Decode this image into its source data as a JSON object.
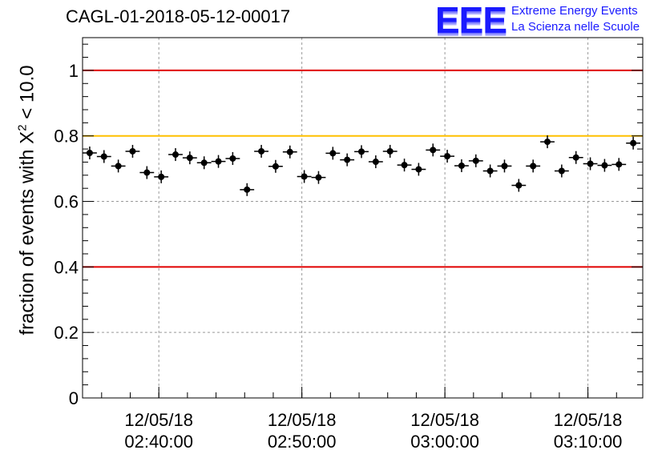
{
  "header": {
    "run_id": "CAGL-01-2018-05-12-00017",
    "logo_mark": "EEE",
    "logo_line1": "Extreme Energy Events",
    "logo_line2": "La Scienza nelle Scuole"
  },
  "colors": {
    "limit_red": "#e00000",
    "limit_yellow": "#ffc000",
    "marker": "#000000",
    "grid": "#999999",
    "logo_blue": "#1a1aff"
  },
  "chart_data": {
    "type": "scatter",
    "ylabel_prefix": "fraction of events with X",
    "ylabel_sup": "2",
    "ylabel_suffix": " < 10.0",
    "ylim": [
      0,
      1.1
    ],
    "yticks": [
      {
        "value": 0,
        "label": "0"
      },
      {
        "value": 0.2,
        "label": "0.2"
      },
      {
        "value": 0.4,
        "label": "0.4"
      },
      {
        "value": 0.6,
        "label": "0.6"
      },
      {
        "value": 0.8,
        "label": "0.8"
      },
      {
        "value": 1.0,
        "label": "1"
      }
    ],
    "xlim": [
      "02:34:40",
      "03:13:50"
    ],
    "xticks": [
      {
        "time": "02:40:00",
        "date": "12/05/18",
        "label": "02:40:00"
      },
      {
        "time": "02:50:00",
        "date": "12/05/18",
        "label": "02:50:00"
      },
      {
        "time": "03:00:00",
        "date": "12/05/18",
        "label": "03:00:00"
      },
      {
        "time": "03:10:00",
        "date": "12/05/18",
        "label": "03:10:00"
      }
    ],
    "grid": true,
    "reference_lines": [
      {
        "y": 1.0,
        "color": "#e00000"
      },
      {
        "y": 0.8,
        "color": "#ffc000"
      },
      {
        "y": 0.4,
        "color": "#e00000"
      }
    ],
    "bin_width_minutes": 1,
    "points": [
      {
        "x": "02:35:10",
        "y": 0.748
      },
      {
        "x": "02:36:10",
        "y": 0.737
      },
      {
        "x": "02:37:10",
        "y": 0.708
      },
      {
        "x": "02:38:10",
        "y": 0.753
      },
      {
        "x": "02:39:10",
        "y": 0.688
      },
      {
        "x": "02:40:10",
        "y": 0.675
      },
      {
        "x": "02:41:10",
        "y": 0.743
      },
      {
        "x": "02:42:10",
        "y": 0.733
      },
      {
        "x": "02:43:10",
        "y": 0.718
      },
      {
        "x": "02:44:10",
        "y": 0.722
      },
      {
        "x": "02:45:10",
        "y": 0.731
      },
      {
        "x": "02:46:10",
        "y": 0.636
      },
      {
        "x": "02:47:10",
        "y": 0.753
      },
      {
        "x": "02:48:10",
        "y": 0.707
      },
      {
        "x": "02:49:10",
        "y": 0.751
      },
      {
        "x": "02:50:10",
        "y": 0.676
      },
      {
        "x": "02:51:10",
        "y": 0.673
      },
      {
        "x": "02:52:10",
        "y": 0.747
      },
      {
        "x": "02:53:10",
        "y": 0.727
      },
      {
        "x": "02:54:10",
        "y": 0.752
      },
      {
        "x": "02:55:10",
        "y": 0.721
      },
      {
        "x": "02:56:10",
        "y": 0.753
      },
      {
        "x": "02:57:10",
        "y": 0.711
      },
      {
        "x": "02:58:10",
        "y": 0.698
      },
      {
        "x": "02:59:10",
        "y": 0.757
      },
      {
        "x": "03:00:10",
        "y": 0.738
      },
      {
        "x": "03:01:10",
        "y": 0.709
      },
      {
        "x": "03:02:10",
        "y": 0.724
      },
      {
        "x": "03:03:10",
        "y": 0.693
      },
      {
        "x": "03:04:10",
        "y": 0.708
      },
      {
        "x": "03:05:10",
        "y": 0.649
      },
      {
        "x": "03:06:10",
        "y": 0.708
      },
      {
        "x": "03:07:10",
        "y": 0.782
      },
      {
        "x": "03:08:10",
        "y": 0.693
      },
      {
        "x": "03:09:10",
        "y": 0.734
      },
      {
        "x": "03:10:10",
        "y": 0.715
      },
      {
        "x": "03:11:10",
        "y": 0.71
      },
      {
        "x": "03:12:10",
        "y": 0.713
      },
      {
        "x": "03:13:10",
        "y": 0.778
      }
    ]
  }
}
